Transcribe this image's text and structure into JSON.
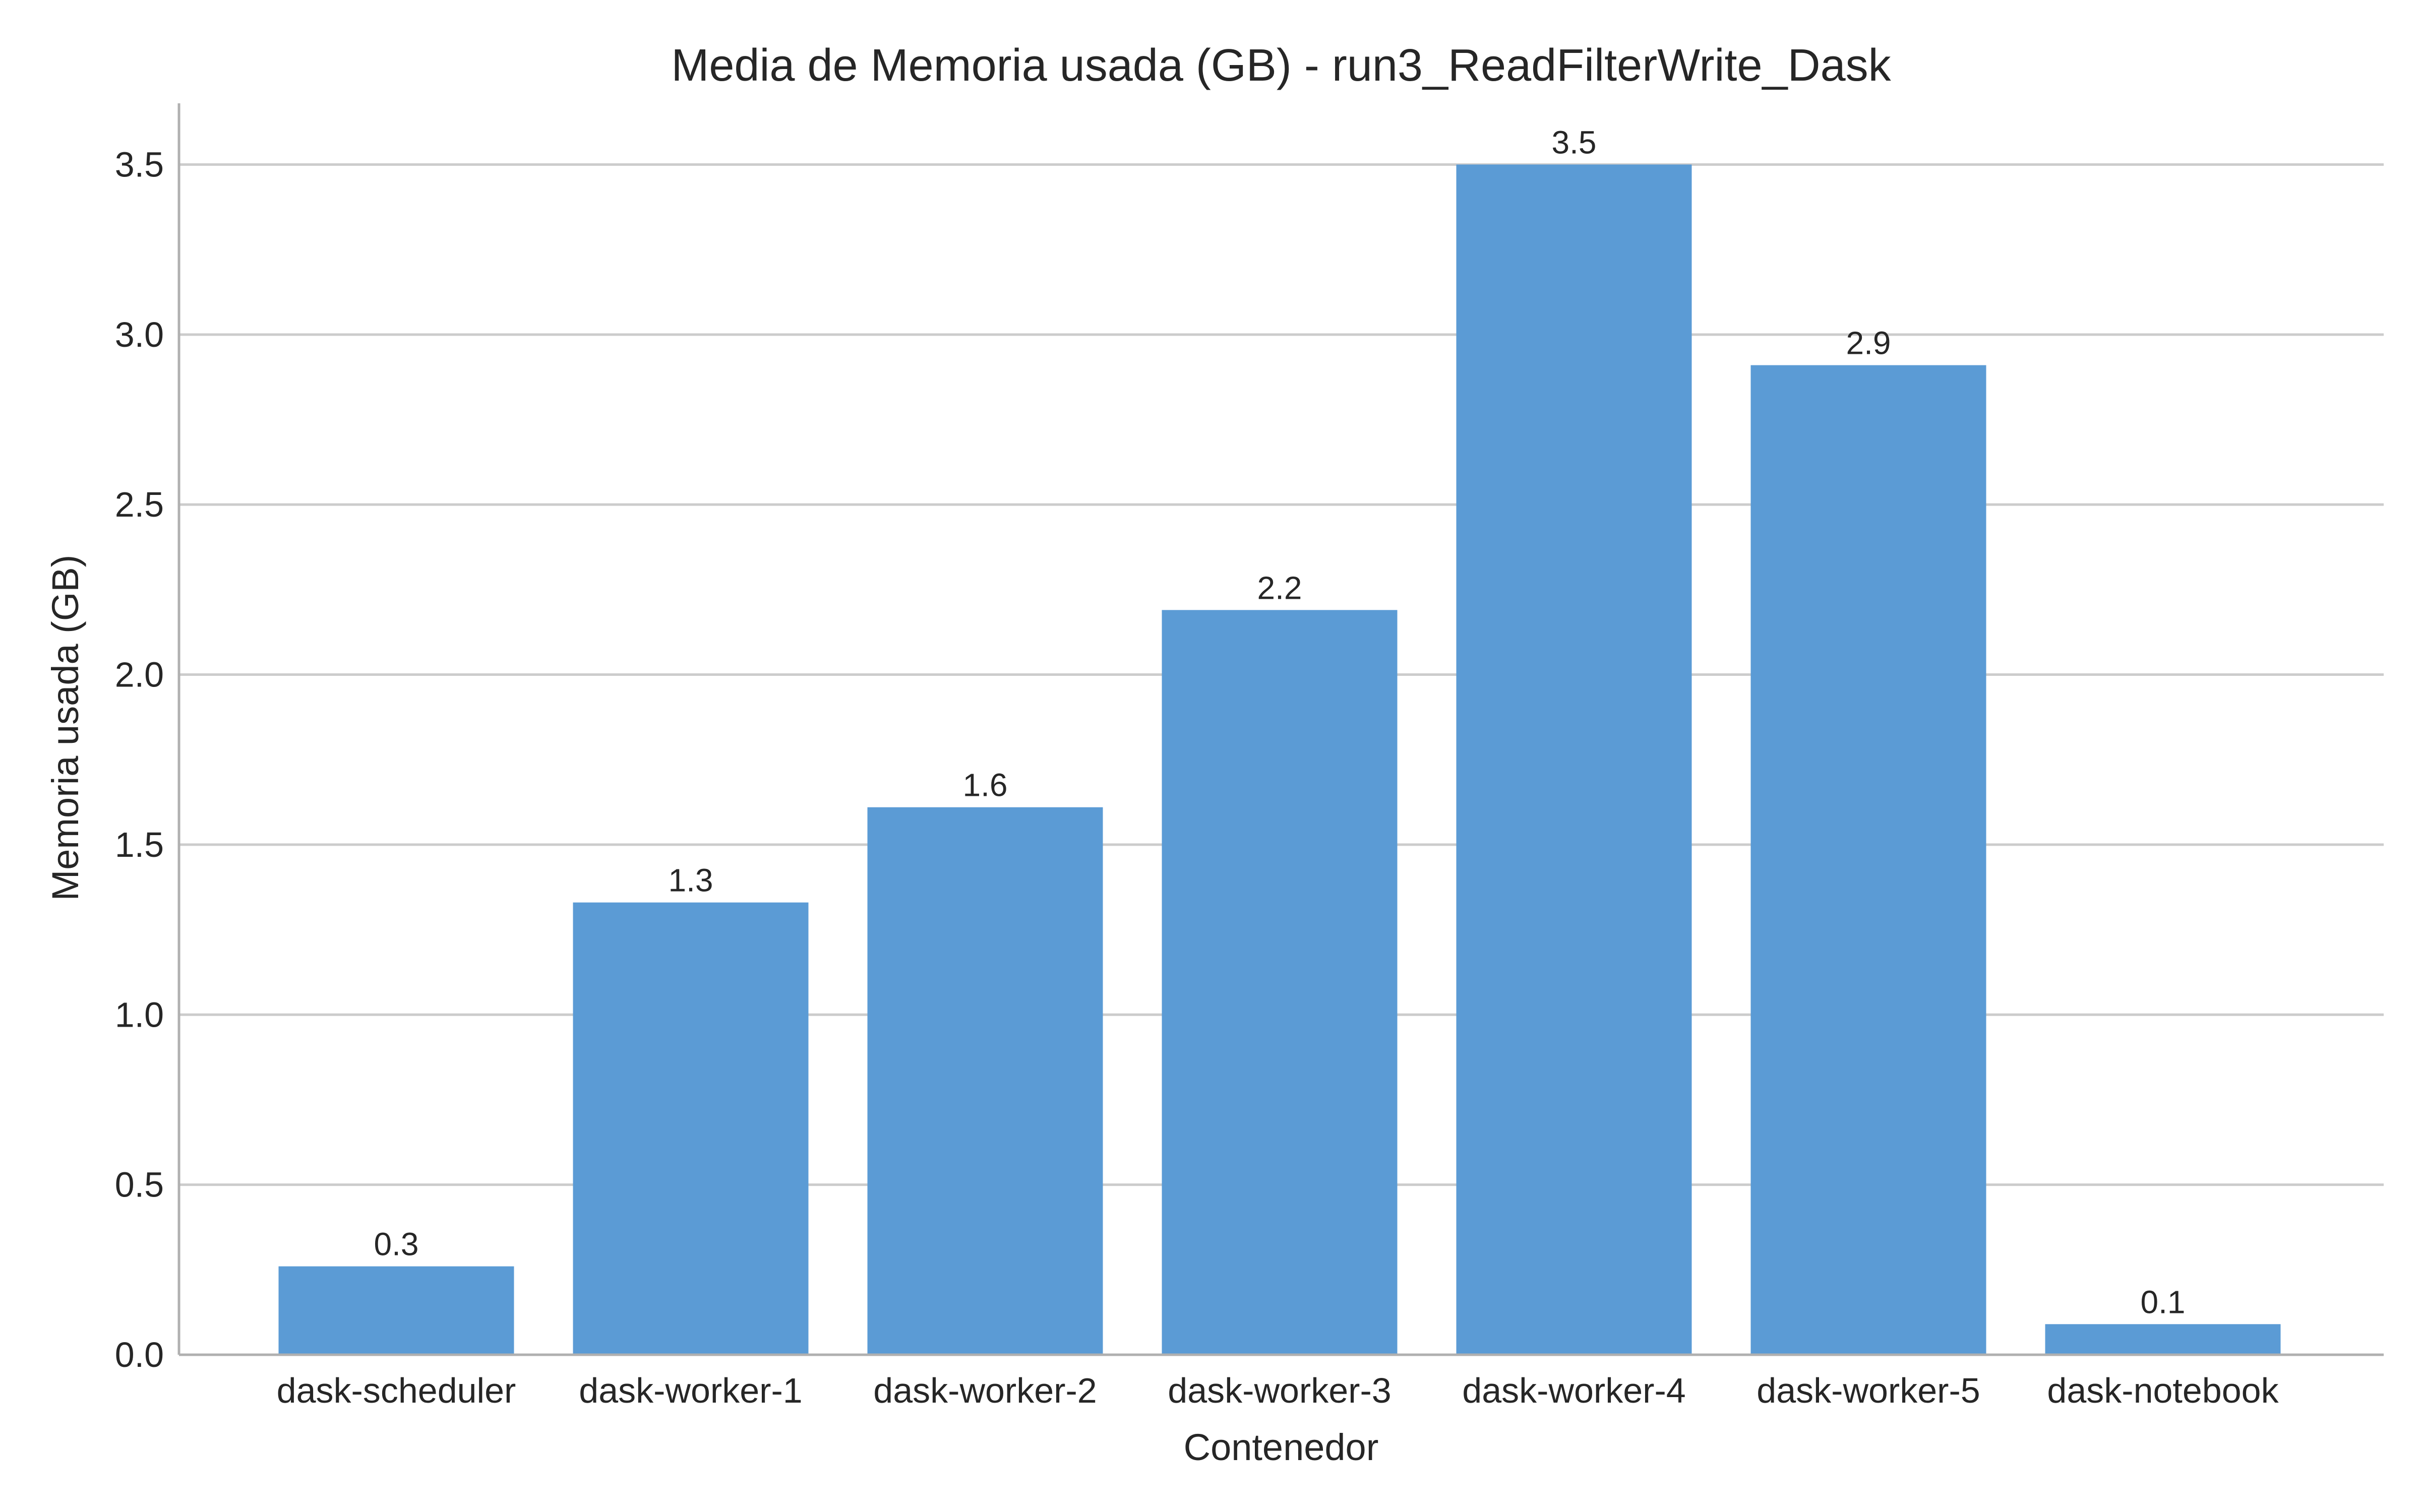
{
  "chart_data": {
    "type": "bar",
    "title": "Media de Memoria usada (GB) - run3_ReadFilterWrite_Dask",
    "xlabel": "Contenedor",
    "ylabel": "Memoria usada (GB)",
    "categories": [
      "dask-scheduler",
      "dask-worker-1",
      "dask-worker-2",
      "dask-worker-3",
      "dask-worker-4",
      "dask-worker-5",
      "dask-notebook"
    ],
    "values": [
      0.26,
      1.33,
      1.61,
      2.19,
      3.5,
      2.91,
      0.09
    ],
    "data_labels": [
      "0.3",
      "1.3",
      "1.6",
      "2.2",
      "3.5",
      "2.9",
      "0.1"
    ],
    "yticks": [
      0.0,
      0.5,
      1.0,
      1.5,
      2.0,
      2.5,
      3.0,
      3.5
    ],
    "ytick_labels": [
      "0.0",
      "0.5",
      "1.0",
      "1.5",
      "2.0",
      "2.5",
      "3.0",
      "3.5"
    ],
    "ylim": [
      0,
      3.68
    ],
    "grid": "horizontal",
    "bar_color": "#5b9bd5"
  }
}
